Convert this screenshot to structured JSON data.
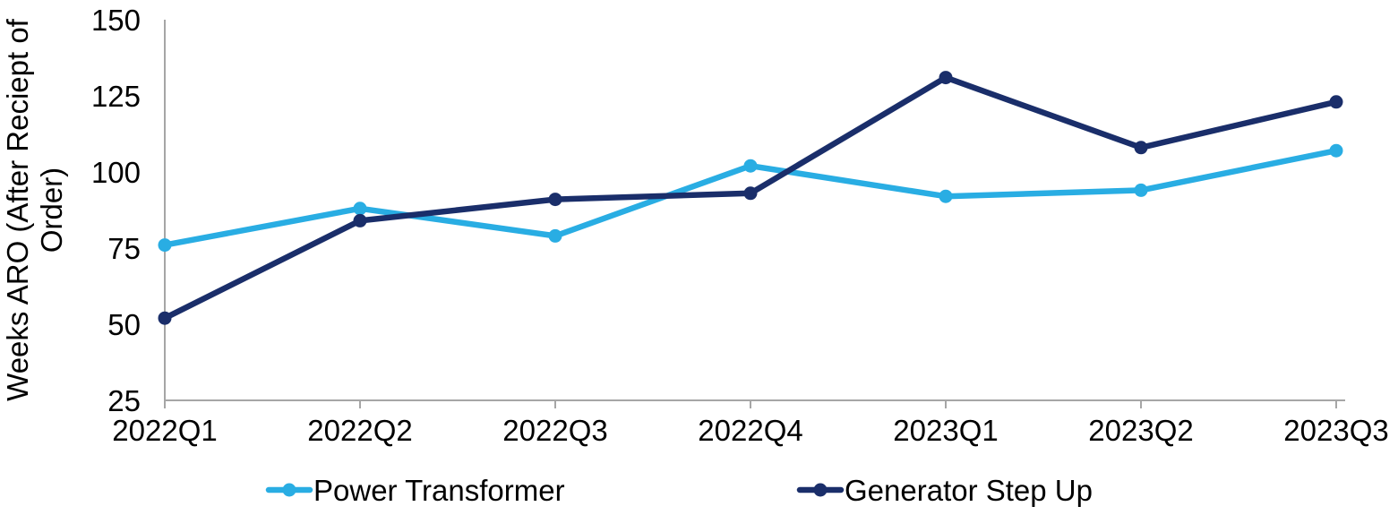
{
  "chart_data": {
    "type": "line",
    "title": "",
    "categories": [
      "2022Q1",
      "2022Q2",
      "2022Q3",
      "2022Q4",
      "2023Q1",
      "2023Q2",
      "2023Q3"
    ],
    "series": [
      {
        "name": "Power Transformer",
        "color": "#29ADE3",
        "values": [
          76,
          88,
          79,
          102,
          92,
          94,
          107
        ]
      },
      {
        "name": "Generator Step Up",
        "color": "#1A2E6A",
        "values": [
          52,
          84,
          91,
          93,
          131,
          108,
          123
        ]
      }
    ],
    "xlabel": "",
    "ylabel": "Weeks ARO (After Reciept of Order)",
    "ylabel_wrapped": [
      "Weeks ARO (After Reciept of",
      "Order)"
    ],
    "yticks": [
      25,
      50,
      75,
      100,
      125,
      150
    ],
    "ylim": [
      25,
      150
    ],
    "grid": false,
    "legend_position": "bottom",
    "axis_color": "#A6A6A6",
    "text_color": "#000000",
    "background_color": "#FFFFFF"
  }
}
